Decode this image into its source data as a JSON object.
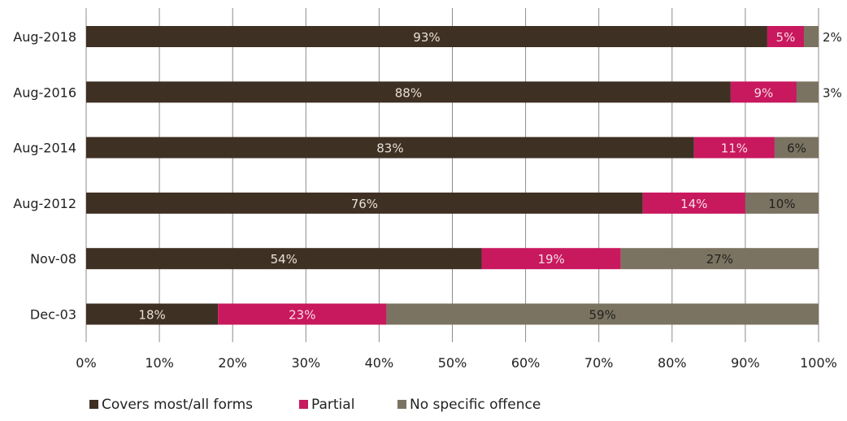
{
  "chart_data": {
    "type": "bar",
    "orientation": "horizontal",
    "stacked": true,
    "categories": [
      "Aug-2018",
      "Aug-2016",
      "Aug-2014",
      "Aug-2012",
      "Nov-08",
      "Dec-03"
    ],
    "series": [
      {
        "name": "Covers most/all forms",
        "color": "#3f3024",
        "label_color": "#e8e0d6",
        "values": [
          93,
          88,
          83,
          76,
          54,
          18
        ]
      },
      {
        "name": "Partial",
        "color": "#c8185e",
        "label_color": "#f6dde6",
        "values": [
          5,
          9,
          11,
          14,
          19,
          23
        ]
      },
      {
        "name": "No specific offence",
        "color": "#7b7361",
        "label_color": "#222222",
        "values": [
          2,
          3,
          6,
          10,
          27,
          59
        ]
      }
    ],
    "data_labels": [
      [
        "93%",
        "88%",
        "83%",
        "76%",
        "54%",
        "18%"
      ],
      [
        "5%",
        "9%",
        "11%",
        "14%",
        "19%",
        "23%"
      ],
      [
        "2%",
        "3%",
        "6%",
        "10%",
        "27%",
        "59%"
      ]
    ],
    "outside_label_series": 2,
    "outside_label_categories": [
      0,
      1
    ],
    "x_ticks": [
      "0%",
      "10%",
      "20%",
      "30%",
      "40%",
      "50%",
      "60%",
      "70%",
      "80%",
      "90%",
      "100%"
    ],
    "xlim": [
      0,
      100
    ],
    "grid": "vertical",
    "legend_position": "bottom-left",
    "title": "",
    "xlabel": "",
    "ylabel": ""
  }
}
